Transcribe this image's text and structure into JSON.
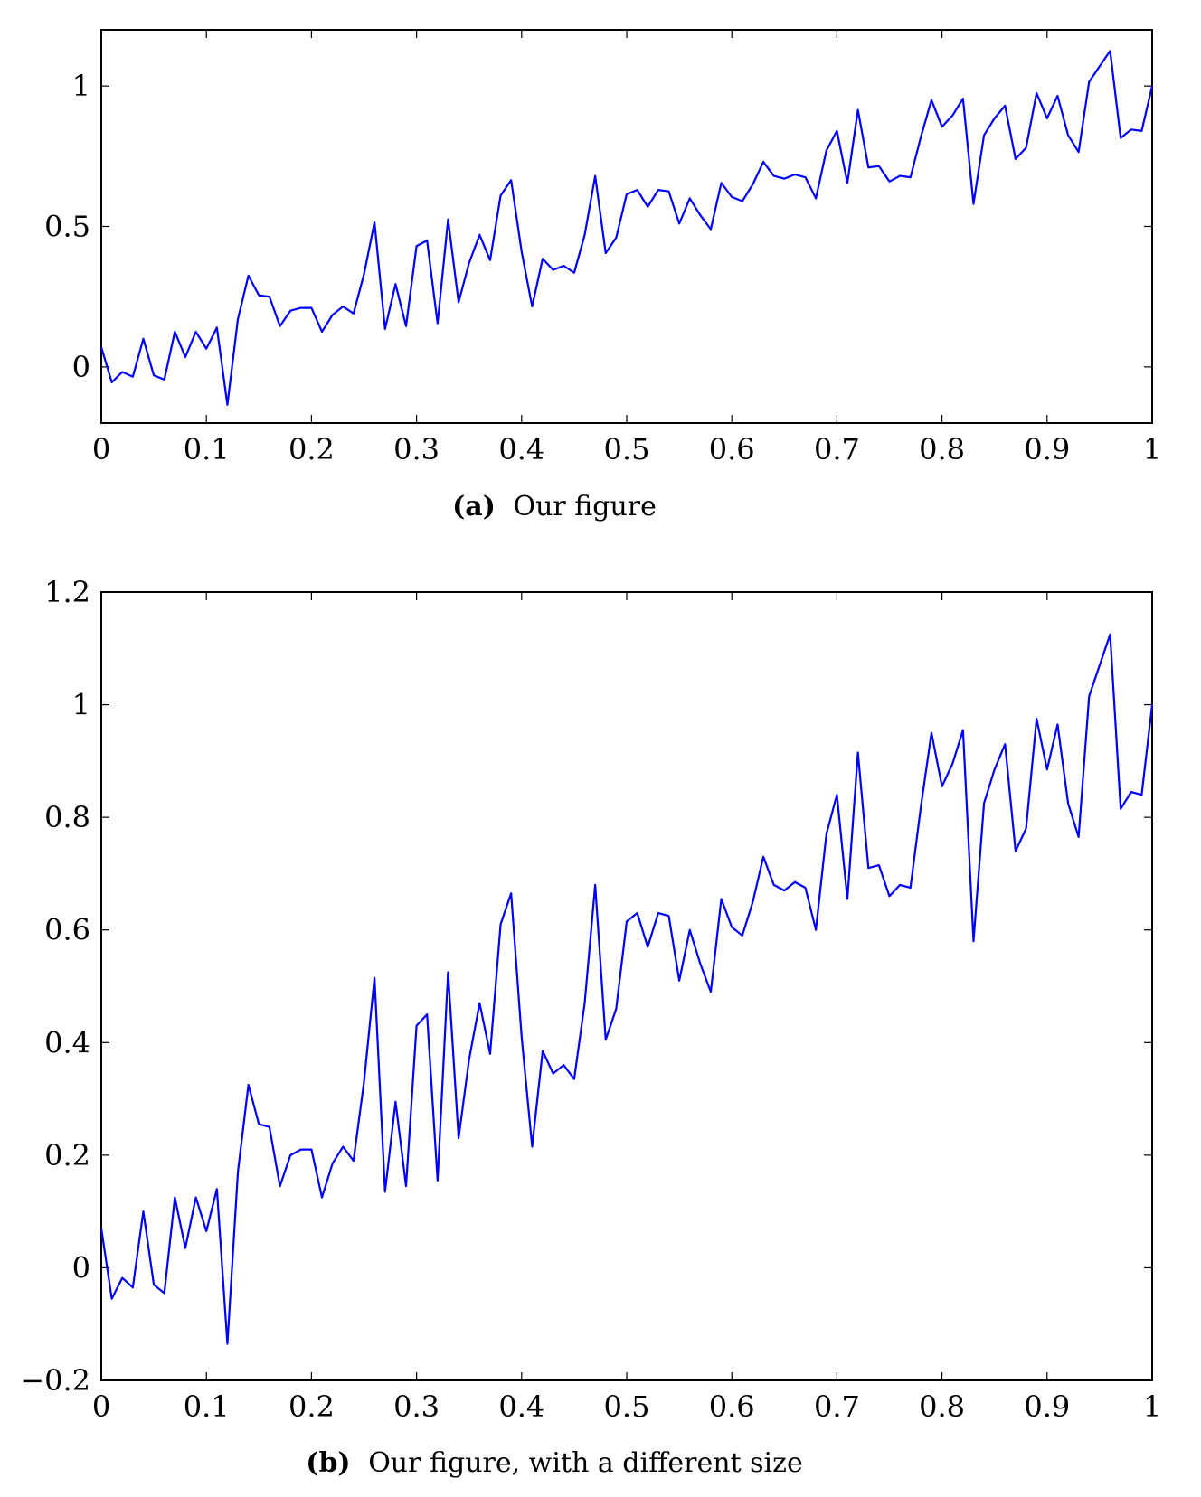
{
  "chart_data": [
    {
      "type": "line",
      "xlim": [
        0,
        1
      ],
      "ylim": [
        -0.2,
        1.2
      ],
      "xticks": [
        "0",
        "0.1",
        "0.2",
        "0.3",
        "0.4",
        "0.5",
        "0.6",
        "0.7",
        "0.8",
        "0.9",
        "1"
      ],
      "yticks": [
        "0",
        "0.5",
        "1"
      ],
      "ytick_values": [
        0,
        0.5,
        1
      ],
      "caption_label": "(a)",
      "caption_text": "Our figure",
      "grid": false,
      "color": "#0000ff"
    },
    {
      "type": "line",
      "xlim": [
        0,
        1
      ],
      "ylim": [
        -0.2,
        1.2
      ],
      "xticks": [
        "0",
        "0.1",
        "0.2",
        "0.3",
        "0.4",
        "0.5",
        "0.6",
        "0.7",
        "0.8",
        "0.9",
        "1"
      ],
      "yticks": [
        "−0.2",
        "0",
        "0.2",
        "0.4",
        "0.6",
        "0.8",
        "1",
        "1.2"
      ],
      "ytick_values": [
        -0.2,
        0,
        0.2,
        0.4,
        0.6,
        0.8,
        1,
        1.2
      ],
      "caption_label": "(b)",
      "caption_text": "Our figure, with a different size",
      "grid": false,
      "color": "#0000ff"
    }
  ],
  "series": {
    "x": [
      0,
      0.01,
      0.02,
      0.03,
      0.04,
      0.05,
      0.06,
      0.07,
      0.08,
      0.09,
      0.1,
      0.11,
      0.12,
      0.13,
      0.14,
      0.15,
      0.16,
      0.17,
      0.18,
      0.19,
      0.2,
      0.21,
      0.22,
      0.23,
      0.24,
      0.25,
      0.26,
      0.27,
      0.28,
      0.29,
      0.3,
      0.31,
      0.32,
      0.33,
      0.34,
      0.35,
      0.36,
      0.37,
      0.38,
      0.39,
      0.4,
      0.41,
      0.42,
      0.43,
      0.44,
      0.45,
      0.46,
      0.47,
      0.48,
      0.49,
      0.5,
      0.51,
      0.52,
      0.53,
      0.54,
      0.55,
      0.56,
      0.57,
      0.58,
      0.59,
      0.6,
      0.61,
      0.62,
      0.63,
      0.64,
      0.65,
      0.66,
      0.67,
      0.68,
      0.69,
      0.7,
      0.71,
      0.72,
      0.73,
      0.74,
      0.75,
      0.76,
      0.77,
      0.78,
      0.79,
      0.8,
      0.81,
      0.82,
      0.83,
      0.84,
      0.85,
      0.86,
      0.87,
      0.88,
      0.89,
      0.9,
      0.91,
      0.92,
      0.93,
      0.94,
      0.95,
      0.96,
      0.97,
      0.98,
      0.99,
      1
    ],
    "y": [
      0.07,
      -0.055,
      -0.018,
      -0.035,
      0.1,
      -0.03,
      -0.045,
      0.125,
      0.035,
      0.125,
      0.065,
      0.14,
      -0.135,
      0.17,
      0.325,
      0.255,
      0.25,
      0.145,
      0.2,
      0.21,
      0.21,
      0.125,
      0.185,
      0.215,
      0.19,
      0.33,
      0.515,
      0.135,
      0.295,
      0.145,
      0.43,
      0.45,
      0.155,
      0.525,
      0.23,
      0.37,
      0.47,
      0.38,
      0.61,
      0.665,
      0.41,
      0.215,
      0.385,
      0.345,
      0.36,
      0.335,
      0.47,
      0.68,
      0.405,
      0.46,
      0.615,
      0.63,
      0.57,
      0.63,
      0.625,
      0.51,
      0.6,
      0.54,
      0.49,
      0.655,
      0.605,
      0.59,
      0.65,
      0.73,
      0.68,
      0.67,
      0.685,
      0.675,
      0.6,
      0.77,
      0.84,
      0.655,
      0.915,
      0.71,
      0.715,
      0.66,
      0.68,
      0.675,
      0.82,
      0.95,
      0.855,
      0.895,
      0.955,
      0.58,
      0.825,
      0.885,
      0.93,
      0.74,
      0.78,
      0.975,
      0.885,
      0.965,
      0.825,
      0.765,
      1.015,
      1.07,
      1.125,
      0.815,
      0.845,
      0.84,
      1.0
    ]
  }
}
